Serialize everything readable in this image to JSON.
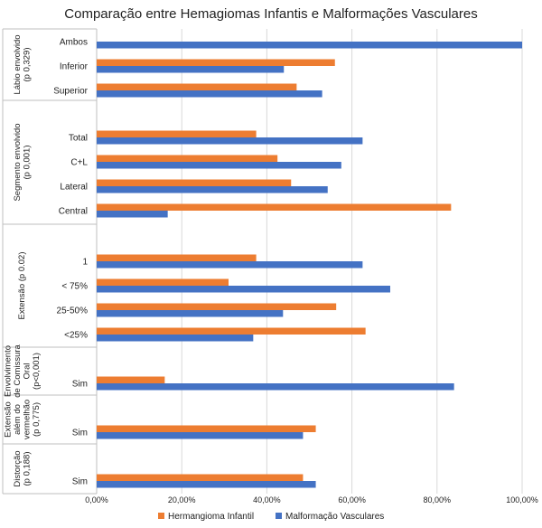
{
  "chart_data": {
    "type": "bar",
    "orientation": "horizontal",
    "title": "Comparação entre Hemagiomas Infantis e Malformações Vasculares",
    "xlim": [
      0,
      100
    ],
    "xticks": [
      "0,00%",
      "20,00%",
      "40,00%",
      "60,00%",
      "80,00%",
      "100,00%"
    ],
    "grid": true,
    "legend_position": "bottom",
    "series": [
      {
        "name": "Hermangioma Infantil",
        "color": "#ED7D31"
      },
      {
        "name": "Malformação Vasculares",
        "color": "#4472C4"
      }
    ],
    "groups": [
      {
        "label_lines": [
          "Lábio envolvido",
          "(p 0,329)"
        ],
        "items": [
          {
            "category": "Ambos",
            "values": [
              0,
              100
            ]
          },
          {
            "category": "Inferior",
            "values": [
              56,
              44
            ]
          },
          {
            "category": "Superior",
            "values": [
              47,
              53
            ]
          }
        ]
      },
      {
        "label_lines": [
          "Segmento envolvido",
          "(p 0,001)"
        ],
        "items": [
          {
            "category": "Total",
            "values": [
              37.5,
              62.5
            ]
          },
          {
            "category": "C+L",
            "values": [
              42.5,
              57.5
            ]
          },
          {
            "category": "Lateral",
            "values": [
              45.7,
              54.3
            ]
          },
          {
            "category": "Central",
            "values": [
              83.3,
              16.7
            ]
          }
        ]
      },
      {
        "label_lines": [
          "Extensão (p 0.02)"
        ],
        "items": [
          {
            "category": "1",
            "values": [
              37.5,
              62.5
            ]
          },
          {
            "category": "< 75%",
            "values": [
              31,
              69
            ]
          },
          {
            "category": "25-50%",
            "values": [
              56.3,
              43.8
            ]
          },
          {
            "category": "<25%",
            "values": [
              63.2,
              36.8
            ]
          }
        ]
      },
      {
        "label_lines": [
          "Envolvimento",
          "de Comissura",
          "Oral",
          "(p<0,001)"
        ],
        "items": [
          {
            "category": "Sim",
            "values": [
              16,
              84
            ]
          }
        ]
      },
      {
        "label_lines": [
          "Extensão",
          "além do",
          "vermelhão",
          "(p 0,775)"
        ],
        "items": [
          {
            "category": "Sim",
            "values": [
              51.5,
              48.5
            ]
          }
        ]
      },
      {
        "label_lines": [
          "Distorção",
          "(p 0,188)"
        ],
        "items": [
          {
            "category": "Sim",
            "values": [
              48.5,
              51.5
            ]
          }
        ]
      }
    ]
  }
}
